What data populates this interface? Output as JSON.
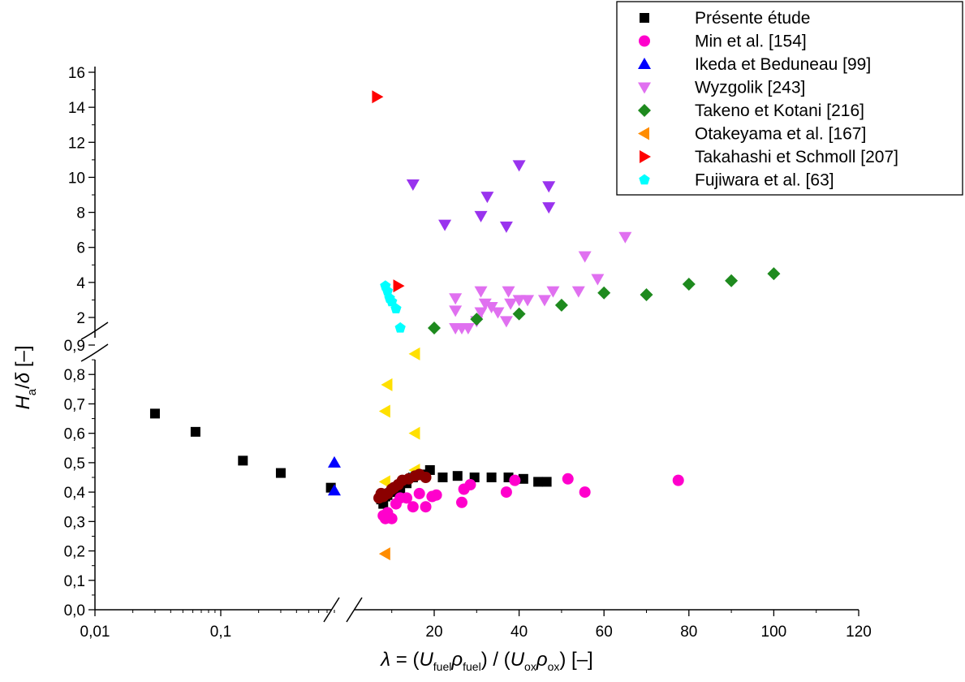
{
  "chart_data": {
    "type": "scatter",
    "title": "",
    "ylabel": "H_a/δ [–]",
    "xlabel": "λ = (U_fuel ρ_fuel) / (U_ox ρ_ox) [–]",
    "x_scale": "broken axis: log scale from 0.01 to ~1, then linear from ~7 to 120",
    "y_scale": "broken axis: linear 0.0–0.9, then linear 2–16",
    "x_tick_labels_log": [
      "0,01",
      "0,1"
    ],
    "x_tick_labels_linear": [
      "20",
      "40",
      "60",
      "80",
      "100",
      "120"
    ],
    "y_tick_labels_lower": [
      "0,0",
      "0,1",
      "0,2",
      "0,3",
      "0,4",
      "0,5",
      "0,6",
      "0,7",
      "0,8",
      "0,9"
    ],
    "y_tick_labels_upper": [
      "2",
      "4",
      "6",
      "8",
      "10",
      "12",
      "14",
      "16"
    ],
    "legend_position": "top-right",
    "grid": false,
    "series": [
      {
        "name": "Présente étude",
        "marker": "square",
        "color": "#000000",
        "points": [
          [
            0.03,
            0.667
          ],
          [
            0.063,
            0.605
          ],
          [
            0.15,
            0.507
          ],
          [
            0.3,
            0.465
          ],
          [
            0.75,
            0.415
          ],
          [
            7.5,
            0.375
          ],
          [
            8,
            0.36
          ],
          [
            8.5,
            0.385
          ],
          [
            9,
            0.39
          ],
          [
            10.5,
            0.4
          ],
          [
            12,
            0.41
          ],
          [
            13.5,
            0.43
          ],
          [
            15,
            0.45
          ],
          [
            17,
            0.46
          ],
          [
            19,
            0.475
          ],
          [
            22,
            0.45
          ],
          [
            25.5,
            0.455
          ],
          [
            29.5,
            0.45
          ],
          [
            33.5,
            0.45
          ],
          [
            37.5,
            0.45
          ],
          [
            41,
            0.445
          ],
          [
            44.5,
            0.435
          ],
          [
            46.5,
            0.435
          ]
        ]
      },
      {
        "name": "Min et al. [154]",
        "marker": "circle",
        "color": "#ff00cc",
        "points": [
          [
            8,
            0.32
          ],
          [
            8.5,
            0.31
          ],
          [
            9,
            0.33
          ],
          [
            10,
            0.31
          ],
          [
            11,
            0.36
          ],
          [
            12,
            0.38
          ],
          [
            13.5,
            0.38
          ],
          [
            15,
            0.35
          ],
          [
            16.5,
            0.395
          ],
          [
            18,
            0.35
          ],
          [
            19.5,
            0.385
          ],
          [
            20.5,
            0.39
          ],
          [
            26.5,
            0.365
          ],
          [
            27,
            0.41
          ],
          [
            28.5,
            0.425
          ],
          [
            37,
            0.4
          ],
          [
            39,
            0.44
          ],
          [
            51.5,
            0.445
          ],
          [
            55.5,
            0.4
          ],
          [
            77.5,
            0.44
          ]
        ]
      },
      {
        "name": "Ikeda et Beduneau [99]",
        "marker": "triangle-up",
        "color": "#0000ff",
        "points": [
          [
            0.8,
            0.5
          ],
          [
            0.8,
            0.405
          ]
        ]
      },
      {
        "name": "Wyzgolik [243]",
        "marker": "triangle-down",
        "color": "#e070f0",
        "points": [
          [
            25,
            1.4
          ],
          [
            26.5,
            1.4
          ],
          [
            28,
            1.4
          ],
          [
            30,
            1.8
          ],
          [
            31,
            2.3
          ],
          [
            32,
            2.8
          ],
          [
            33.5,
            2.6
          ],
          [
            35,
            2.3
          ],
          [
            37,
            1.8
          ],
          [
            38,
            2.8
          ],
          [
            40,
            3.0
          ],
          [
            42,
            3.0
          ],
          [
            46,
            3.0
          ],
          [
            48,
            3.5
          ],
          [
            54,
            3.5
          ],
          [
            55.5,
            5.5
          ],
          [
            58.5,
            4.2
          ],
          [
            65,
            6.6
          ],
          [
            15,
            9.6
          ],
          [
            22.5,
            7.3
          ],
          [
            25,
            3.1
          ],
          [
            25,
            2.4
          ],
          [
            31,
            7.8
          ],
          [
            32.5,
            8.9
          ],
          [
            31,
            3.5
          ],
          [
            37,
            7.2
          ],
          [
            37.5,
            3.5
          ],
          [
            40,
            10.7
          ],
          [
            47,
            9.5
          ],
          [
            47,
            8.3
          ]
        ]
      },
      {
        "name": "Takeno et Kotani [216]",
        "marker": "diamond",
        "color": "#1e8a1e",
        "points": [
          [
            20,
            1.4
          ],
          [
            30,
            1.9
          ],
          [
            40,
            2.2
          ],
          [
            50,
            2.7
          ],
          [
            60,
            3.4
          ],
          [
            70,
            3.3
          ],
          [
            80,
            3.9
          ],
          [
            90,
            4.1
          ],
          [
            100,
            4.5
          ]
        ]
      },
      {
        "name": "Otakeyama et al. [167]",
        "marker": "triangle-left",
        "color": "#ff8c00",
        "points": [
          [
            8.5,
            0.19
          ]
        ]
      },
      {
        "name": "Takahashi et Schmoll [207]",
        "marker": "triangle-right",
        "color": "#ff0000",
        "points": [
          [
            6.5,
            14.6
          ],
          [
            11.5,
            3.8
          ]
        ]
      },
      {
        "name": "Fujiwara et al. [63]",
        "marker": "pentagon",
        "color": "#00ffff",
        "points": [
          [
            8.5,
            3.8
          ],
          [
            9,
            3.5
          ],
          [
            9.5,
            3.1
          ],
          [
            10,
            2.9
          ],
          [
            11,
            2.5
          ],
          [
            12,
            1.4
          ],
          [
            15,
            0.455
          ]
        ]
      },
      {
        "name": "",
        "marker": "triangle-left",
        "color": "#ffe000",
        "points": [
          [
            8.5,
            0.435
          ],
          [
            8.5,
            0.675
          ],
          [
            9,
            0.765
          ],
          [
            15.5,
            0.6
          ],
          [
            15.5,
            0.475
          ],
          [
            15.5,
            0.87
          ]
        ]
      },
      {
        "name": "",
        "marker": "circle",
        "color": "#8b0000",
        "points": [
          [
            7,
            0.38
          ],
          [
            7.5,
            0.395
          ],
          [
            8,
            0.385
          ],
          [
            9,
            0.395
          ],
          [
            10,
            0.41
          ],
          [
            10.5,
            0.415
          ],
          [
            11.5,
            0.425
          ],
          [
            12.5,
            0.44
          ],
          [
            14,
            0.445
          ],
          [
            15.5,
            0.455
          ],
          [
            16.5,
            0.46
          ],
          [
            18,
            0.45
          ]
        ]
      }
    ]
  }
}
